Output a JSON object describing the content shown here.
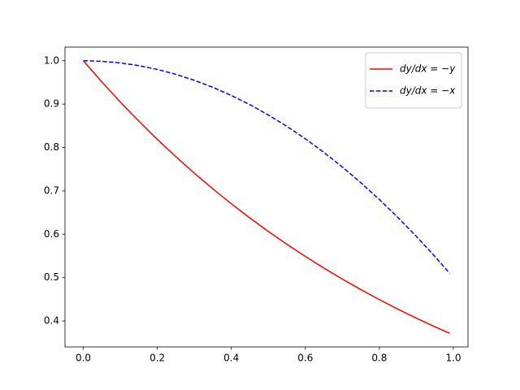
{
  "chart_data": {
    "type": "line",
    "x": [
      0,
      0.05,
      0.1,
      0.15,
      0.2,
      0.25,
      0.3,
      0.35,
      0.4,
      0.45,
      0.5,
      0.55,
      0.6,
      0.65,
      0.7,
      0.75,
      0.8,
      0.85,
      0.9,
      0.95,
      0.99
    ],
    "series": [
      {
        "name": "dy/dx = −y",
        "color": "#ff0000",
        "linestyle": "solid",
        "values": [
          1,
          0.9512,
          0.9048,
          0.8607,
          0.8187,
          0.7788,
          0.7408,
          0.7047,
          0.6703,
          0.6376,
          0.6065,
          0.5769,
          0.5488,
          0.522,
          0.4966,
          0.4724,
          0.4493,
          0.4274,
          0.4066,
          0.3867,
          0.3716
        ]
      },
      {
        "name": "dy/dx = −x",
        "color": "#0000ff",
        "linestyle": "dashed",
        "values": [
          1,
          0.99875,
          0.995,
          0.98875,
          0.98,
          0.96875,
          0.955,
          0.93875,
          0.92,
          0.89875,
          0.875,
          0.84875,
          0.82,
          0.78875,
          0.755,
          0.71875,
          0.68,
          0.63875,
          0.595,
          0.54875,
          0.50995
        ]
      }
    ],
    "xlim": [
      -0.0495,
      1.0395
    ],
    "ylim": [
      0.3402,
      1.0314
    ],
    "xticks": [
      {
        "value": 0,
        "label": "0.0"
      },
      0.2,
      0.4,
      0.6,
      0.8,
      {
        "value": 1,
        "label": "1.0"
      }
    ],
    "yticks": [
      0.4,
      0.5,
      0.6,
      0.7,
      0.8,
      0.9,
      {
        "value": 1,
        "label": "1.0"
      }
    ],
    "legend": "upper right"
  }
}
